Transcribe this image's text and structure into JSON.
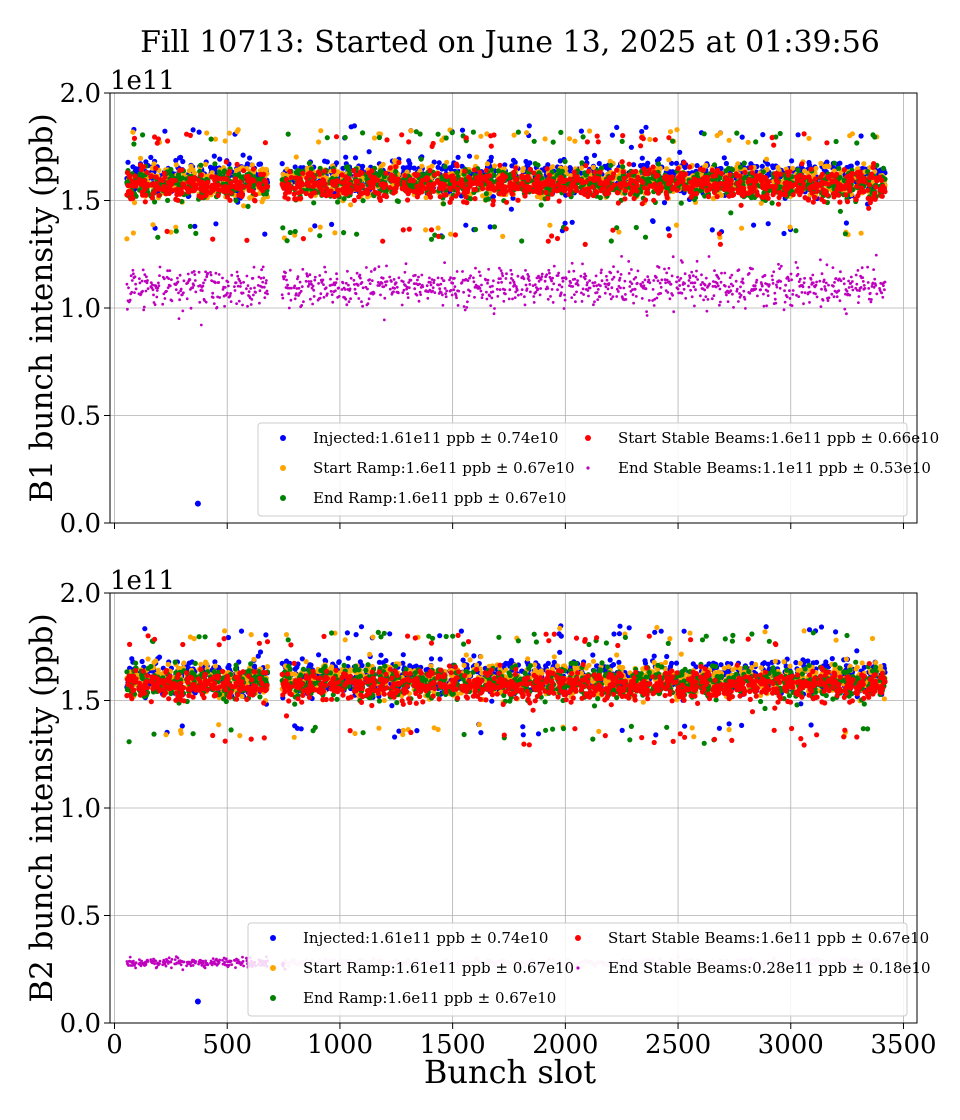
{
  "figure": {
    "title": "Fill 10713: Started on June 13, 2025 at 01:39:56",
    "xlabel": "Bunch slot"
  },
  "chart_data": [
    {
      "type": "scatter",
      "ylabel": "B1 bunch intensity (ppb)",
      "offset_text": "1e11",
      "xlim": [
        -20,
        3560
      ],
      "ylim": [
        0.0,
        2.0
      ],
      "x_ticks": [
        0,
        500,
        1000,
        1500,
        2000,
        2500,
        3000,
        3500
      ],
      "y_ticks": [
        "0.0",
        "0.5",
        "1.0",
        "1.5",
        "2.0"
      ],
      "grid": true,
      "legend_placement": "lower right",
      "series": [
        {
          "name": "Injected:1.61e11 ppb ± 0.74e10",
          "color": "#0000ff",
          "marker": "dot",
          "mean": 1.61,
          "std": 0.074
        },
        {
          "name": "Start Ramp:1.6e11 ppb ± 0.67e10",
          "color": "#ffa500",
          "marker": "dot",
          "mean": 1.6,
          "std": 0.067
        },
        {
          "name": "End Ramp:1.6e11 ppb ± 0.67e10",
          "color": "#008000",
          "marker": "dot",
          "mean": 1.6,
          "std": 0.067
        },
        {
          "name": "Start Stable Beams:1.6e11 ppb ± 0.66e10",
          "color": "#ff0000",
          "marker": "dot",
          "mean": 1.6,
          "std": 0.066
        },
        {
          "name": "End Stable Beams:1.1e11 ppb ± 0.53e10",
          "color": "#bf00bf",
          "marker": "small",
          "mean": 1.1,
          "std": 0.053
        }
      ],
      "outliers": [
        {
          "x": 370,
          "y": 0.09,
          "series": "Injected"
        }
      ]
    },
    {
      "type": "scatter",
      "ylabel": "B2 bunch intensity (ppb)",
      "offset_text": "1e11",
      "xlim": [
        -20,
        3560
      ],
      "ylim": [
        0.0,
        2.0
      ],
      "x_ticks": [
        0,
        500,
        1000,
        1500,
        2000,
        2500,
        3000,
        3500
      ],
      "y_ticks": [
        "0.0",
        "0.5",
        "1.0",
        "1.5",
        "2.0"
      ],
      "grid": true,
      "legend_placement": "lower right",
      "series": [
        {
          "name": "Injected:1.61e11 ppb ± 0.74e10",
          "color": "#0000ff",
          "marker": "dot",
          "mean": 1.61,
          "std": 0.074
        },
        {
          "name": "Start Ramp:1.61e11 ppb ± 0.67e10",
          "color": "#ffa500",
          "marker": "dot",
          "mean": 1.61,
          "std": 0.067
        },
        {
          "name": "End Ramp:1.6e11 ppb ± 0.67e10",
          "color": "#008000",
          "marker": "dot",
          "mean": 1.6,
          "std": 0.067
        },
        {
          "name": "Start Stable Beams:1.6e11 ppb ± 0.67e10",
          "color": "#ff0000",
          "marker": "dot",
          "mean": 1.6,
          "std": 0.067
        },
        {
          "name": "End Stable Beams:0.28e11 ppb ± 0.18e10",
          "color": "#bf00bf",
          "marker": "small",
          "mean": 0.28,
          "std": 0.018
        }
      ],
      "outliers": [
        {
          "x": 370,
          "y": 0.1,
          "series": "Injected"
        }
      ]
    }
  ]
}
